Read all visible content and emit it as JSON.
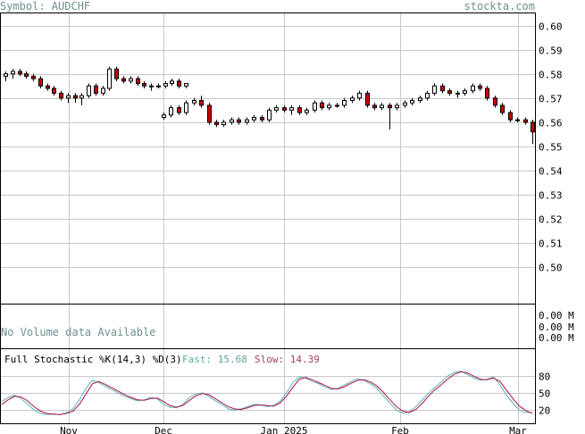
{
  "header": {
    "symbol": "Symbol: AUDCHF",
    "site": "stockta.com"
  },
  "volume_panel": {
    "message": "No Volume data Available",
    "axis_labels": [
      "0.00 M",
      "0.00 M",
      "0.00 M"
    ]
  },
  "stochastic": {
    "title": "Full Stochastic %K(14,3) %D(3)",
    "fast_label": "Fast: 15.68",
    "slow_label": "Slow: 14.39"
  },
  "colors": {
    "grid": "#c8c8c8",
    "up": "#ffffff",
    "down": "#cc0000",
    "fast": "#55b8b8",
    "slow": "#b01050"
  },
  "chart_data": [
    {
      "type": "candlestick",
      "title": "AUDCHF",
      "x_tick_labels": [
        "Nov",
        "Dec",
        "Jan 2025",
        "Feb",
        "Mar"
      ],
      "y_ticks": [
        0.6,
        0.59,
        0.58,
        0.57,
        0.56,
        0.55,
        0.54,
        0.53,
        0.52,
        0.51,
        0.5
      ],
      "ylim": [
        0.485,
        0.605
      ],
      "grid": true,
      "series": [
        {
          "values": [
            [
              0.579,
              0.581,
              0.577,
              0.58
            ],
            [
              0.58,
              0.582,
              0.578,
              0.581
            ],
            [
              0.581,
              0.582,
              0.579,
              0.58
            ],
            [
              0.58,
              0.581,
              0.578,
              0.579
            ],
            [
              0.579,
              0.58,
              0.577,
              0.578
            ],
            [
              0.578,
              0.579,
              0.574,
              0.575
            ],
            [
              0.575,
              0.576,
              0.573,
              0.574
            ],
            [
              0.574,
              0.575,
              0.571,
              0.572
            ],
            [
              0.572,
              0.573,
              0.569,
              0.57
            ],
            [
              0.57,
              0.572,
              0.568,
              0.571
            ],
            [
              0.571,
              0.572,
              0.568,
              0.57
            ],
            [
              0.57,
              0.572,
              0.567,
              0.571
            ],
            [
              0.571,
              0.576,
              0.57,
              0.575
            ],
            [
              0.575,
              0.576,
              0.571,
              0.572
            ],
            [
              0.572,
              0.575,
              0.571,
              0.574
            ],
            [
              0.574,
              0.583,
              0.573,
              0.582
            ],
            [
              0.582,
              0.583,
              0.577,
              0.578
            ],
            [
              0.578,
              0.579,
              0.576,
              0.577
            ],
            [
              0.577,
              0.579,
              0.576,
              0.578
            ],
            [
              0.578,
              0.579,
              0.575,
              0.576
            ],
            [
              0.576,
              0.577,
              0.574,
              0.575
            ],
            [
              0.575,
              0.576,
              0.573,
              0.575
            ],
            [
              0.575,
              0.576,
              0.574,
              0.575
            ],
            [
              0.575,
              0.577,
              0.574,
              0.576
            ],
            [
              0.576,
              0.578,
              0.575,
              0.577
            ],
            [
              0.577,
              0.578,
              0.574,
              0.575
            ],
            [
              0.575,
              0.576,
              0.574,
              0.576
            ],
            [
              0.562,
              0.564,
              0.561,
              0.563
            ],
            [
              0.563,
              0.567,
              0.562,
              0.566
            ],
            [
              0.566,
              0.567,
              0.563,
              0.564
            ],
            [
              0.564,
              0.569,
              0.563,
              0.568
            ],
            [
              0.568,
              0.57,
              0.567,
              0.569
            ],
            [
              0.569,
              0.571,
              0.566,
              0.567
            ],
            [
              0.567,
              0.568,
              0.559,
              0.56
            ],
            [
              0.56,
              0.561,
              0.558,
              0.559
            ],
            [
              0.559,
              0.561,
              0.558,
              0.56
            ],
            [
              0.56,
              0.562,
              0.559,
              0.561
            ],
            [
              0.561,
              0.562,
              0.559,
              0.56
            ],
            [
              0.56,
              0.562,
              0.559,
              0.561
            ],
            [
              0.561,
              0.563,
              0.56,
              0.562
            ],
            [
              0.562,
              0.563,
              0.56,
              0.561
            ],
            [
              0.561,
              0.566,
              0.56,
              0.565
            ],
            [
              0.565,
              0.567,
              0.564,
              0.566
            ],
            [
              0.566,
              0.567,
              0.564,
              0.565
            ],
            [
              0.565,
              0.567,
              0.563,
              0.566
            ],
            [
              0.566,
              0.567,
              0.563,
              0.564
            ],
            [
              0.564,
              0.566,
              0.563,
              0.565
            ],
            [
              0.565,
              0.569,
              0.564,
              0.568
            ],
            [
              0.568,
              0.569,
              0.565,
              0.566
            ],
            [
              0.566,
              0.568,
              0.565,
              0.567
            ],
            [
              0.567,
              0.568,
              0.566,
              0.567
            ],
            [
              0.567,
              0.57,
              0.566,
              0.569
            ],
            [
              0.569,
              0.571,
              0.568,
              0.57
            ],
            [
              0.57,
              0.573,
              0.569,
              0.572
            ],
            [
              0.572,
              0.573,
              0.566,
              0.567
            ],
            [
              0.567,
              0.568,
              0.565,
              0.566
            ],
            [
              0.566,
              0.568,
              0.565,
              0.567
            ],
            [
              0.567,
              0.568,
              0.557,
              0.566
            ],
            [
              0.566,
              0.568,
              0.565,
              0.567
            ],
            [
              0.567,
              0.569,
              0.566,
              0.568
            ],
            [
              0.568,
              0.57,
              0.567,
              0.569
            ],
            [
              0.569,
              0.571,
              0.568,
              0.57
            ],
            [
              0.57,
              0.573,
              0.569,
              0.572
            ],
            [
              0.572,
              0.576,
              0.571,
              0.575
            ],
            [
              0.575,
              0.576,
              0.572,
              0.573
            ],
            [
              0.573,
              0.574,
              0.571,
              0.572
            ],
            [
              0.572,
              0.573,
              0.57,
              0.572
            ],
            [
              0.572,
              0.574,
              0.571,
              0.573
            ],
            [
              0.573,
              0.576,
              0.572,
              0.575
            ],
            [
              0.575,
              0.576,
              0.573,
              0.574
            ],
            [
              0.574,
              0.575,
              0.569,
              0.57
            ],
            [
              0.57,
              0.571,
              0.566,
              0.567
            ],
            [
              0.567,
              0.568,
              0.563,
              0.564
            ],
            [
              0.564,
              0.565,
              0.56,
              0.561
            ],
            [
              0.561,
              0.562,
              0.56,
              0.561
            ],
            [
              0.561,
              0.562,
              0.559,
              0.56
            ],
            [
              0.56,
              0.561,
              0.551,
              0.556
            ]
          ]
        }
      ]
    },
    {
      "type": "line",
      "title": "Full Stochastic %K(14,3) %D(3)",
      "y_ticks": [
        80,
        50,
        20
      ],
      "ylim": [
        0,
        100
      ],
      "grid": true,
      "series": [
        {
          "name": "Fast",
          "values": [
            35,
            42,
            46,
            40,
            30,
            20,
            14,
            12,
            13,
            12,
            15,
            22,
            38,
            58,
            72,
            68,
            62,
            56,
            50,
            44,
            40,
            36,
            38,
            42,
            40,
            30,
            25,
            24,
            30,
            42,
            48,
            50,
            44,
            36,
            30,
            22,
            20,
            22,
            26,
            30,
            29,
            26,
            28,
            35,
            50,
            68,
            78,
            76,
            70,
            66,
            60,
            56,
            58,
            64,
            70,
            75,
            72,
            66,
            58,
            45,
            32,
            20,
            14,
            17,
            26,
            38,
            50,
            60,
            70,
            80,
            86,
            88,
            82,
            76,
            72,
            74,
            78,
            64,
            46,
            32,
            20,
            16,
            15.68
          ]
        },
        {
          "name": "Slow",
          "values": [
            30,
            38,
            44,
            43,
            36,
            26,
            18,
            14,
            13,
            12,
            14,
            18,
            30,
            48,
            66,
            70,
            65,
            59,
            53,
            47,
            42,
            38,
            37,
            40,
            41,
            35,
            28,
            25,
            28,
            37,
            45,
            49,
            47,
            40,
            33,
            26,
            22,
            21,
            24,
            28,
            29,
            28,
            27,
            32,
            44,
            60,
            74,
            77,
            73,
            68,
            63,
            58,
            57,
            61,
            67,
            72,
            73,
            69,
            62,
            51,
            38,
            26,
            18,
            16,
            21,
            32,
            45,
            56,
            65,
            75,
            83,
            87,
            85,
            79,
            74,
            73,
            76,
            70,
            55,
            40,
            27,
            19,
            14.39
          ]
        }
      ]
    }
  ]
}
